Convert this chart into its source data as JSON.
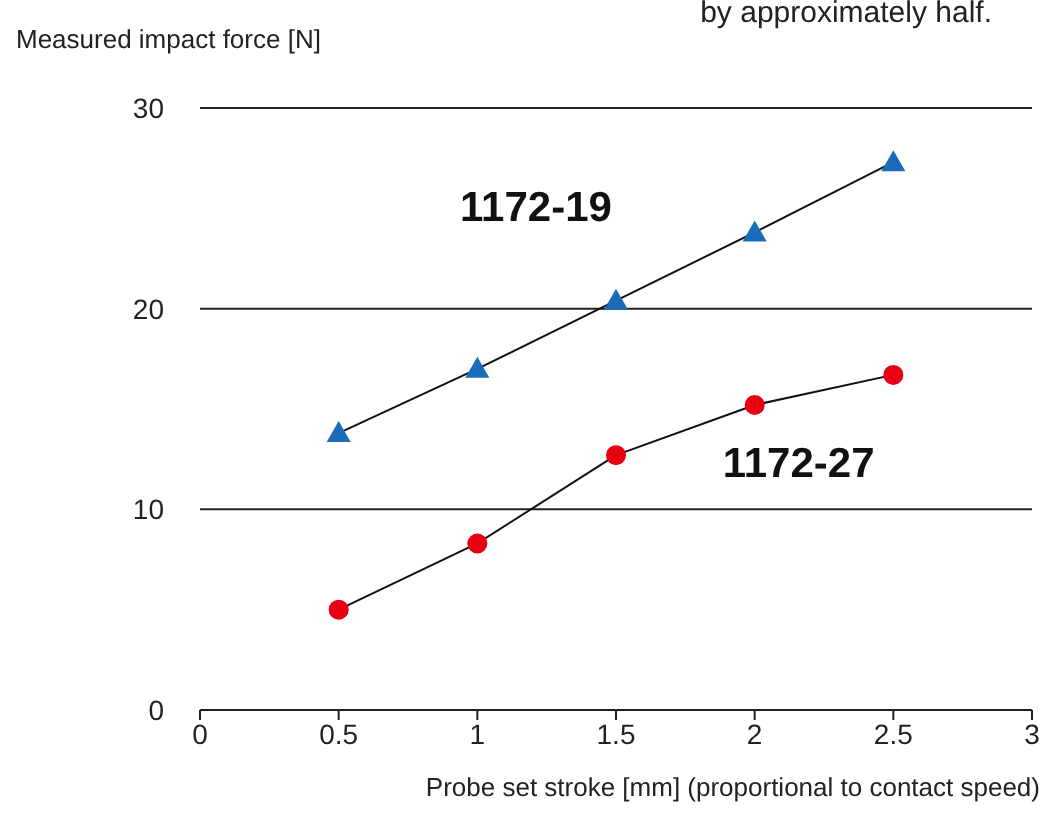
{
  "chart_data": {
    "type": "line",
    "ylabel": "Measured impact force [N]",
    "xlabel": "Probe set stroke [mm] (proportional to contact speed)",
    "annotations": [
      "by approximately half."
    ],
    "x": [
      0.5,
      1,
      1.5,
      2,
      2.5
    ],
    "series": [
      {
        "name": "1172-19",
        "color": "#1a6cb8",
        "marker": "triangle",
        "values": [
          13.8,
          17.0,
          20.4,
          23.8,
          27.3
        ]
      },
      {
        "name": "1172-27",
        "color": "#e60012",
        "marker": "circle",
        "values": [
          5.0,
          8.3,
          12.7,
          15.2,
          16.7
        ]
      }
    ],
    "xlim": [
      0,
      3
    ],
    "xticks": [
      0,
      0.5,
      1,
      1.5,
      2,
      2.5,
      3
    ],
    "ylim": [
      0,
      30
    ],
    "yticks": [
      0,
      10,
      20,
      30
    ],
    "grid": "y",
    "legend": false,
    "line_style": "solid"
  }
}
